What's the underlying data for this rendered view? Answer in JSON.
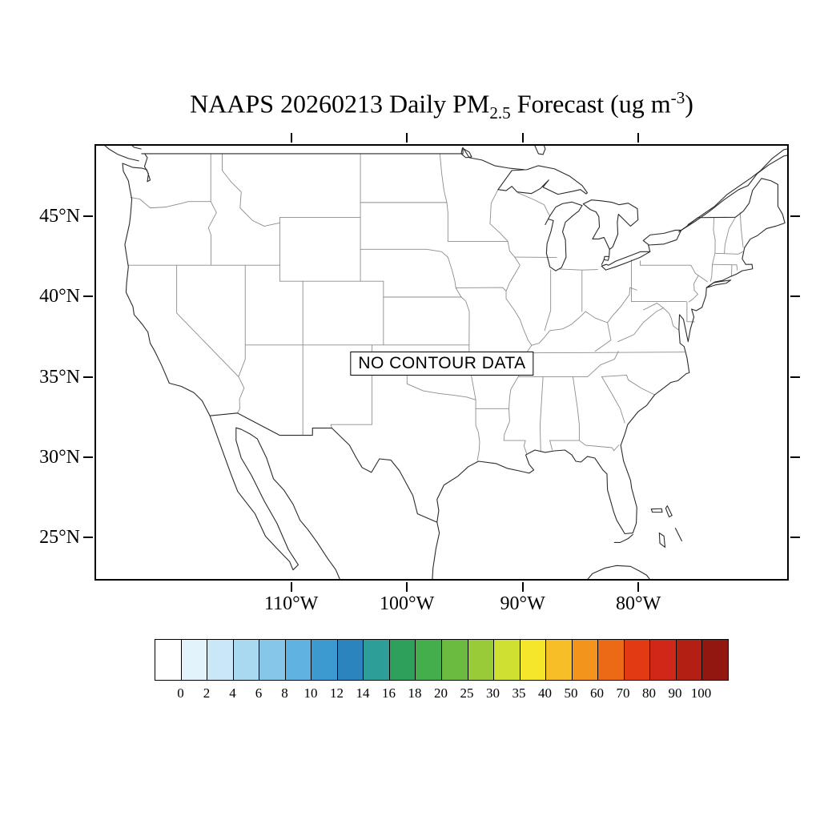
{
  "title": {
    "part1": "NAAPS 20260213 Daily PM",
    "subscript": "2.5",
    "part2": " Forecast (ug m",
    "superscript": "-3",
    "part3": ")"
  },
  "map": {
    "no_data_label": "NO CONTOUR DATA",
    "lat_labels": [
      "45°N",
      "40°N",
      "35°N",
      "30°N",
      "25°N"
    ],
    "lon_labels": [
      "110°W",
      "100°W",
      "90°W",
      "80°W"
    ]
  },
  "colorbar": {
    "tick_labels": [
      "0",
      "2",
      "4",
      "6",
      "8",
      "10",
      "12",
      "14",
      "16",
      "18",
      "20",
      "25",
      "30",
      "35",
      "40",
      "50",
      "60",
      "70",
      "80",
      "90",
      "100"
    ],
    "colors": [
      "#ffffff",
      "#e3f3fb",
      "#c9e7f7",
      "#a9d9f1",
      "#86c7e9",
      "#60b2e0",
      "#3d9ad1",
      "#2b84bd",
      "#2e9e99",
      "#2fa05c",
      "#45ae4c",
      "#6bbb41",
      "#99ca38",
      "#cfe032",
      "#f5e62c",
      "#f6bf27",
      "#f3941d",
      "#ec6a15",
      "#e23b14",
      "#d02818",
      "#b31f13",
      "#921710"
    ]
  },
  "chart_data": {
    "type": "map",
    "title": "NAAPS 20260213 Daily PM2.5 Forecast (ug m-3)",
    "status_annotation": "NO CONTOUR DATA",
    "region": "Continental United States",
    "colorbar_levels": [
      0,
      2,
      4,
      6,
      8,
      10,
      12,
      14,
      16,
      18,
      20,
      25,
      30,
      35,
      40,
      50,
      60,
      70,
      80,
      90,
      100
    ],
    "colorbar_units": "ug m-3",
    "lat_ticks_deg": [
      45,
      40,
      35,
      30,
      25
    ],
    "lon_ticks_deg": [
      -110,
      -100,
      -90,
      -80
    ]
  }
}
